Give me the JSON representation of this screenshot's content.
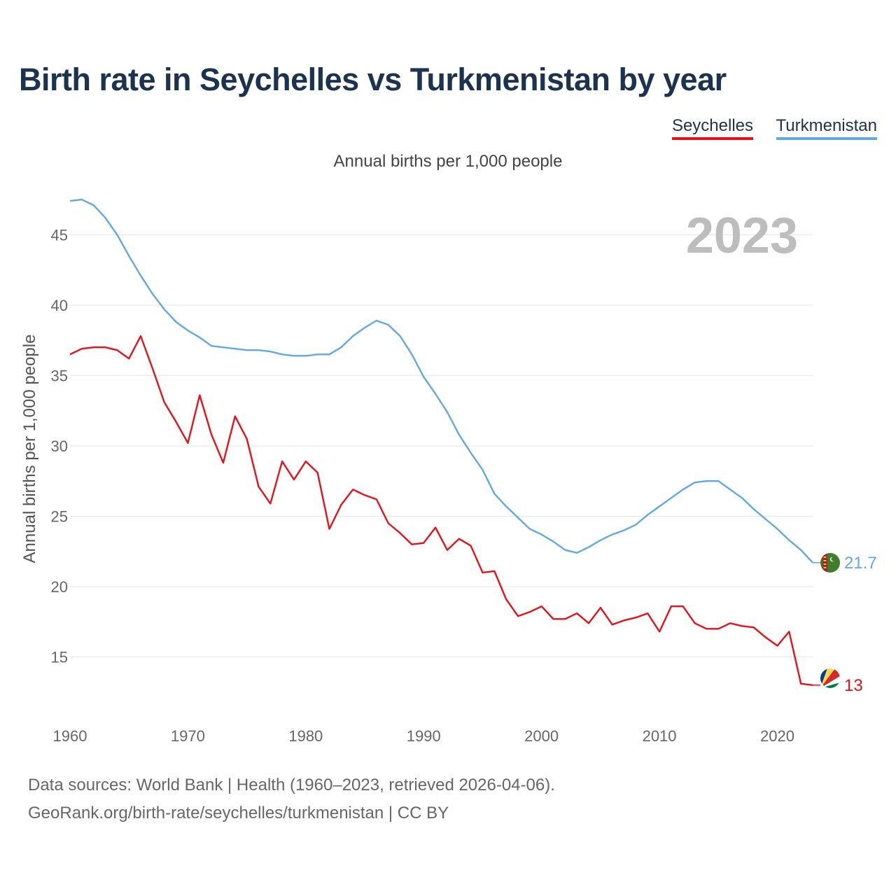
{
  "title": "Birth rate in Seychelles vs Turkmenistan by year",
  "subtitle": "Annual births per 1,000 people",
  "legend": [
    {
      "name": "Seychelles",
      "color": "#e8101a"
    },
    {
      "name": "Turkmenistan",
      "color": "#62a8e5"
    }
  ],
  "source": {
    "line1": "Data sources: World Bank | Health (1960–2023, retrieved 2026-04-06).",
    "line2": "GeoRank.org/birth-rate/seychelles/turkmenistan | CC BY"
  },
  "chart_data": {
    "type": "line",
    "title": "Birth rate in Seychelles vs Turkmenistan by year",
    "ylabel": "Annual births per 1,000 people",
    "xlabel": "",
    "year_label": "2023",
    "xlim": [
      1960,
      2023
    ],
    "ylim": [
      10.7,
      48.5
    ],
    "x_ticks": [
      1960,
      1970,
      1980,
      1990,
      2000,
      2010,
      2020
    ],
    "y_ticks": [
      15,
      20,
      25,
      30,
      35,
      40,
      45
    ],
    "grid": true,
    "legend_position": "top-right",
    "x": [
      1960,
      1961,
      1962,
      1963,
      1964,
      1965,
      1966,
      1967,
      1968,
      1969,
      1970,
      1971,
      1972,
      1973,
      1974,
      1975,
      1976,
      1977,
      1978,
      1979,
      1980,
      1981,
      1982,
      1983,
      1984,
      1985,
      1986,
      1987,
      1988,
      1989,
      1990,
      1991,
      1992,
      1993,
      1994,
      1995,
      1996,
      1997,
      1998,
      1999,
      2000,
      2001,
      2002,
      2003,
      2004,
      2005,
      2006,
      2007,
      2008,
      2009,
      2010,
      2011,
      2012,
      2013,
      2014,
      2015,
      2016,
      2017,
      2018,
      2019,
      2020,
      2021,
      2022,
      2023
    ],
    "series": [
      {
        "name": "Seychelles",
        "color": "#e8101a",
        "end_label": "13",
        "flag_icon": "seychelles-flag-icon",
        "values": [
          36.5,
          36.9,
          37.0,
          37.0,
          36.8,
          36.2,
          37.8,
          35.5,
          33.1,
          31.7,
          30.2,
          33.6,
          30.8,
          28.8,
          32.1,
          30.5,
          27.1,
          25.9,
          28.9,
          27.6,
          28.9,
          28.1,
          24.1,
          25.8,
          26.9,
          26.5,
          26.2,
          24.5,
          23.8,
          23.0,
          23.1,
          24.2,
          22.6,
          23.4,
          22.9,
          21.0,
          21.1,
          19.1,
          17.9,
          18.2,
          18.6,
          17.7,
          17.7,
          18.1,
          17.4,
          18.5,
          17.3,
          17.6,
          17.8,
          18.1,
          16.8,
          18.6,
          18.6,
          17.4,
          17.0,
          17.0,
          17.4,
          17.2,
          17.1,
          16.4,
          15.8,
          16.8,
          13.1,
          13.0
        ]
      },
      {
        "name": "Turkmenistan",
        "color": "#62a8e5",
        "end_label": "21.7",
        "flag_icon": "turkmenistan-flag-icon",
        "values": [
          47.4,
          47.5,
          47.1,
          46.2,
          45.0,
          43.5,
          42.1,
          40.8,
          39.7,
          38.8,
          38.2,
          37.7,
          37.1,
          37.0,
          36.9,
          36.8,
          36.8,
          36.7,
          36.5,
          36.4,
          36.4,
          36.5,
          36.5,
          37.0,
          37.8,
          38.4,
          38.9,
          38.6,
          37.8,
          36.5,
          34.9,
          33.7,
          32.4,
          30.8,
          29.5,
          28.3,
          26.6,
          25.7,
          24.9,
          24.1,
          23.7,
          23.2,
          22.6,
          22.4,
          22.8,
          23.3,
          23.7,
          24.0,
          24.4,
          25.1,
          25.7,
          26.3,
          26.9,
          27.4,
          27.5,
          27.5,
          26.9,
          26.3,
          25.5,
          24.8,
          24.1,
          23.3,
          22.6,
          21.7
        ]
      }
    ]
  }
}
